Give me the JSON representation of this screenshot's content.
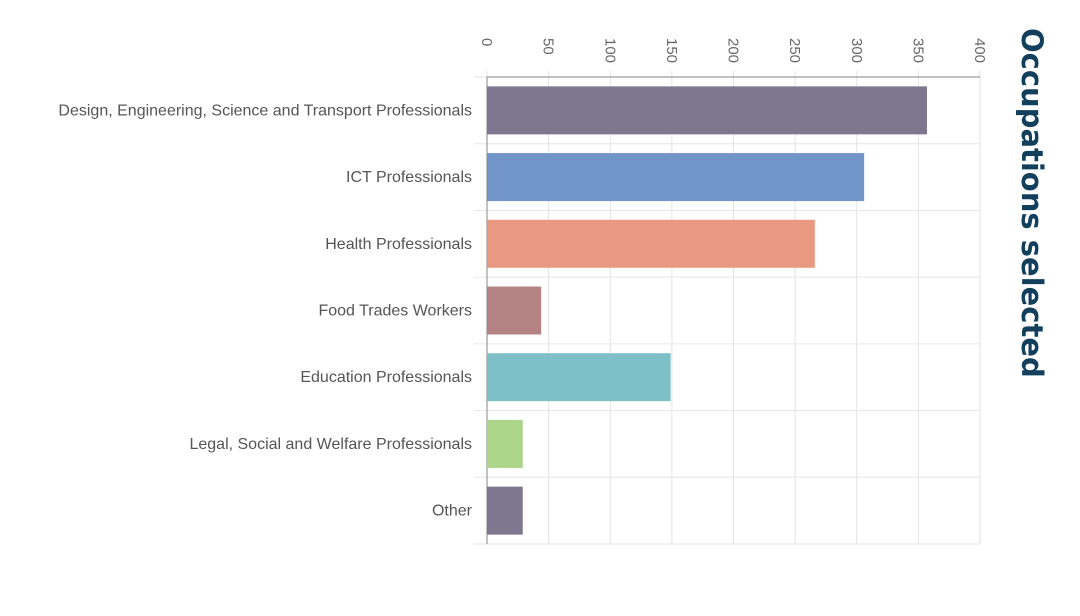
{
  "chart_data": {
    "type": "bar",
    "orientation": "horizontal",
    "title": "Occupations selected",
    "categories": [
      "Design, Engineering, Science and Transport Professionals",
      "ICT Professionals",
      "Health Professionals",
      "Food Trades Workers",
      "Education Professionals",
      "Legal, Social and Welfare Professionals",
      "Other"
    ],
    "values": [
      357,
      306,
      266,
      44,
      149,
      29,
      29
    ],
    "colors": [
      "#767189",
      "#6a8fc6",
      "#e8937a",
      "#b17c7c",
      "#77bdc4",
      "#a8d384",
      "#767189"
    ],
    "xlim": [
      0,
      400
    ],
    "xticks": [
      "0",
      "50",
      "100",
      "150",
      "200",
      "250",
      "300",
      "350",
      "400"
    ],
    "grid": true,
    "axis_position": "top"
  }
}
